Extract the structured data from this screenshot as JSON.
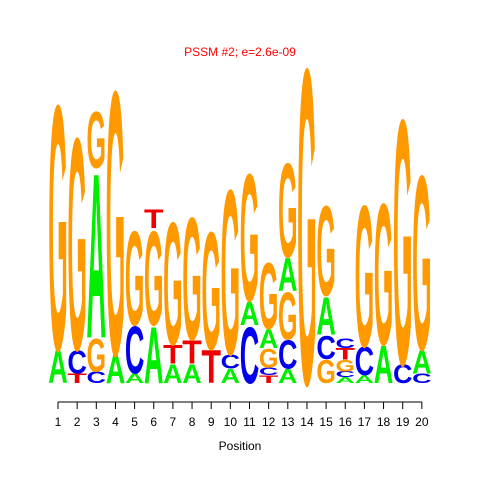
{
  "chart_data": {
    "type": "sequence-logo",
    "title": "PSSM #2; e=2.6e-09",
    "xlabel": "Position",
    "ylabel": "",
    "positions": [
      1,
      2,
      3,
      4,
      5,
      6,
      7,
      8,
      9,
      10,
      11,
      12,
      13,
      14,
      15,
      16,
      17,
      18,
      19,
      20
    ],
    "colors": {
      "A": "#00ee00",
      "C": "#0000ee",
      "G": "#ff9900",
      "T": "#ee0000"
    },
    "columns": [
      {
        "position": 1,
        "letters": [
          {
            "letter": "A",
            "height": 0.35
          },
          {
            "letter": "G",
            "height": 2.6
          }
        ]
      },
      {
        "position": 2,
        "letters": [
          {
            "letter": "T",
            "height": 0.1
          },
          {
            "letter": "C",
            "height": 0.25
          },
          {
            "letter": "G",
            "height": 2.25
          }
        ]
      },
      {
        "position": 3,
        "letters": [
          {
            "letter": "C",
            "height": 0.12
          },
          {
            "letter": "G",
            "height": 0.35
          },
          {
            "letter": "A",
            "height": 1.75
          },
          {
            "letter": "G",
            "height": 0.6
          }
        ]
      },
      {
        "position": 4,
        "letters": [
          {
            "letter": "A",
            "height": 0.3
          },
          {
            "letter": "G",
            "height": 2.8
          }
        ]
      },
      {
        "position": 5,
        "letters": [
          {
            "letter": "A",
            "height": 0.1
          },
          {
            "letter": "C",
            "height": 0.5
          },
          {
            "letter": "G",
            "height": 1.0
          }
        ]
      },
      {
        "position": 6,
        "letters": [
          {
            "letter": "A",
            "height": 0.6
          },
          {
            "letter": "G",
            "height": 1.0
          },
          {
            "letter": "T",
            "height": 0.2
          }
        ]
      },
      {
        "position": 7,
        "letters": [
          {
            "letter": "A",
            "height": 0.2
          },
          {
            "letter": "T",
            "height": 0.2
          },
          {
            "letter": "G",
            "height": 1.3
          }
        ]
      },
      {
        "position": 8,
        "letters": [
          {
            "letter": "A",
            "height": 0.2
          },
          {
            "letter": "T",
            "height": 0.25
          },
          {
            "letter": "G",
            "height": 1.3
          }
        ]
      },
      {
        "position": 9,
        "letters": [
          {
            "letter": "T",
            "height": 0.35
          },
          {
            "letter": "G",
            "height": 1.25
          }
        ]
      },
      {
        "position": 10,
        "letters": [
          {
            "letter": "A",
            "height": 0.15
          },
          {
            "letter": "C",
            "height": 0.15
          },
          {
            "letter": "G",
            "height": 1.75
          }
        ]
      },
      {
        "position": 11,
        "letters": [
          {
            "letter": "C",
            "height": 0.6
          },
          {
            "letter": "A",
            "height": 0.25
          },
          {
            "letter": "G",
            "height": 1.35
          }
        ]
      },
      {
        "position": 12,
        "letters": [
          {
            "letter": "T",
            "height": 0.08
          },
          {
            "letter": "C",
            "height": 0.08
          },
          {
            "letter": "G",
            "height": 0.2
          },
          {
            "letter": "A",
            "height": 0.2
          },
          {
            "letter": "G",
            "height": 0.7
          }
        ]
      },
      {
        "position": 13,
        "letters": [
          {
            "letter": "A",
            "height": 0.15
          },
          {
            "letter": "C",
            "height": 0.3
          },
          {
            "letter": "G",
            "height": 0.5
          },
          {
            "letter": "A",
            "height": 0.35
          },
          {
            "letter": "G",
            "height": 1.0
          }
        ]
      },
      {
        "position": 14,
        "letters": [
          {
            "letter": "G",
            "height": 3.35
          }
        ]
      },
      {
        "position": 15,
        "letters": [
          {
            "letter": "G",
            "height": 0.25
          },
          {
            "letter": "C",
            "height": 0.25
          },
          {
            "letter": "A",
            "height": 0.4
          },
          {
            "letter": "G",
            "height": 0.95
          }
        ]
      },
      {
        "position": 16,
        "letters": [
          {
            "letter": "A",
            "height": 0.06
          },
          {
            "letter": "C",
            "height": 0.06
          },
          {
            "letter": "G",
            "height": 0.12
          },
          {
            "letter": "T",
            "height": 0.12
          },
          {
            "letter": "C",
            "height": 0.1
          }
        ]
      },
      {
        "position": 17,
        "letters": [
          {
            "letter": "A",
            "height": 0.08
          },
          {
            "letter": "C",
            "height": 0.3
          },
          {
            "letter": "G",
            "height": 1.5
          }
        ]
      },
      {
        "position": 18,
        "letters": [
          {
            "letter": "A",
            "height": 0.4
          },
          {
            "letter": "G",
            "height": 1.5
          }
        ]
      },
      {
        "position": 19,
        "letters": [
          {
            "letter": "C",
            "height": 0.2
          },
          {
            "letter": "G",
            "height": 2.6
          }
        ]
      },
      {
        "position": 20,
        "letters": [
          {
            "letter": "C",
            "height": 0.1
          },
          {
            "letter": "A",
            "height": 0.25
          },
          {
            "letter": "G",
            "height": 1.85
          }
        ]
      }
    ]
  }
}
